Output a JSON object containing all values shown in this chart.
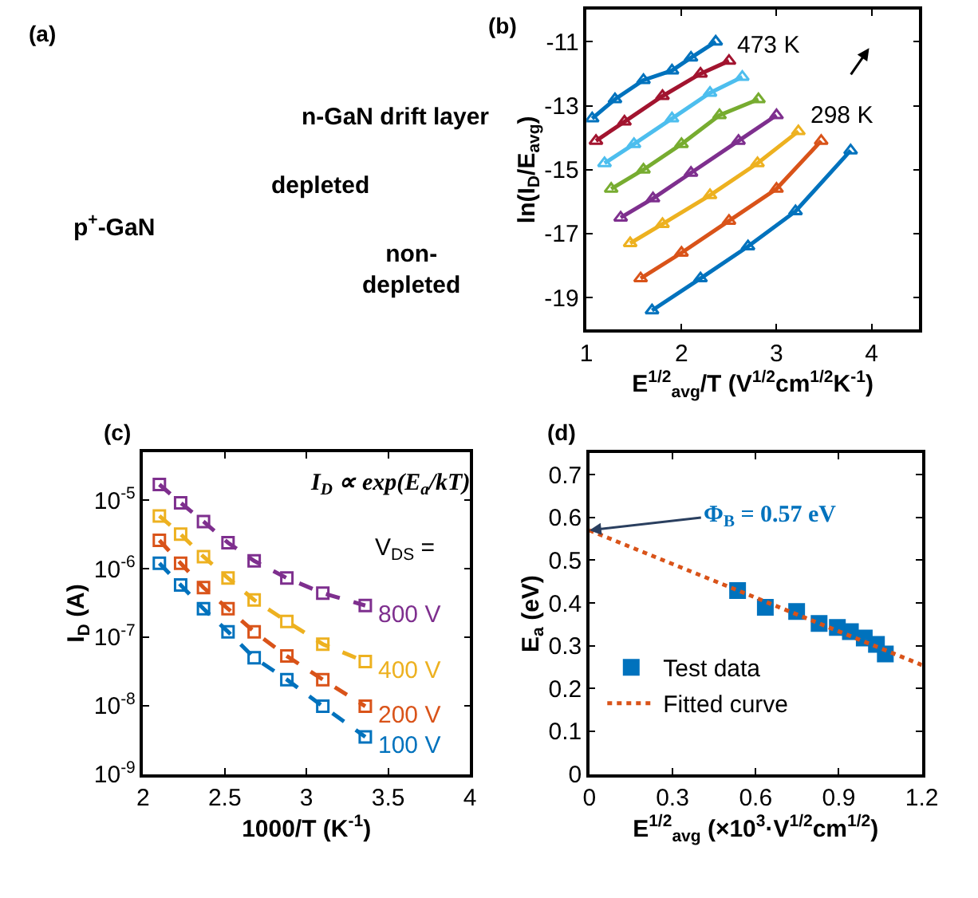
{
  "chart_data": [
    {
      "type": "other",
      "title": "(a)",
      "annotations": [
        "n-GaN drift layer",
        "depleted",
        "p$^{+}$-GaN",
        "non-\ndepleted"
      ]
    },
    {
      "type": "line",
      "title": "(b)",
      "xlabel": "E$^{1/2}$$_{avg}$/T (V$^{1/2}$cm$^{1/2}$K$^{-1}$)",
      "ylabel": "ln(I$_{D}$/E$_{avg}$)",
      "xlim": [
        1,
        4.5
      ],
      "ylim": [
        -20,
        -10
      ],
      "xticks": [
        1,
        2,
        3,
        4
      ],
      "yticks": [
        -19,
        -17,
        -15,
        -13,
        -11
      ],
      "marker": "triangle",
      "line_style": "solid",
      "legend": false,
      "annotations": [
        "473 K",
        "298 K"
      ],
      "series": [
        {
          "color": "#0072bd",
          "x": [
            1.06,
            1.3,
            1.6,
            1.9,
            2.1,
            2.36
          ],
          "values": [
            -13.4,
            -12.8,
            -12.2,
            -11.9,
            -11.5,
            -11.0
          ]
        },
        {
          "color": "#a2142f",
          "x": [
            1.1,
            1.4,
            1.8,
            2.2,
            2.5
          ],
          "values": [
            -14.1,
            -13.5,
            -12.7,
            -12.0,
            -11.6
          ]
        },
        {
          "color": "#4dbeee",
          "x": [
            1.19,
            1.5,
            1.9,
            2.3,
            2.64
          ],
          "values": [
            -14.8,
            -14.2,
            -13.4,
            -12.6,
            -12.1
          ]
        },
        {
          "color": "#77ac30",
          "x": [
            1.26,
            1.6,
            2.0,
            2.4,
            2.81
          ],
          "values": [
            -15.6,
            -15.0,
            -14.2,
            -13.3,
            -12.8
          ]
        },
        {
          "color": "#7e2f8e",
          "x": [
            1.36,
            1.7,
            2.1,
            2.6,
            3.0
          ],
          "values": [
            -16.5,
            -15.9,
            -15.1,
            -14.1,
            -13.3
          ]
        },
        {
          "color": "#edb120",
          "x": [
            1.46,
            1.8,
            2.3,
            2.8,
            3.23
          ],
          "values": [
            -17.3,
            -16.7,
            -15.8,
            -14.8,
            -13.8
          ]
        },
        {
          "color": "#d95319",
          "x": [
            1.57,
            2.0,
            2.5,
            3.0,
            3.47
          ],
          "values": [
            -18.4,
            -17.6,
            -16.6,
            -15.6,
            -14.1
          ]
        },
        {
          "color": "#0072bd",
          "x": [
            1.69,
            2.2,
            2.7,
            3.2,
            3.78
          ],
          "values": [
            -19.4,
            -18.4,
            -17.4,
            -16.3,
            -14.4
          ]
        }
      ]
    },
    {
      "type": "line",
      "title": "(c)",
      "xlabel": "1000/T (K$^{-1}$)",
      "ylabel": "I$_{D}$ (A)",
      "xlim": [
        2,
        4
      ],
      "ylim": [
        1e-09,
        5e-05
      ],
      "log": "y",
      "xticks": [
        2,
        2.5,
        3,
        3.5,
        4
      ],
      "yticks": [
        {
          "value": 1e-09,
          "label": "10$^{-9}$"
        },
        {
          "value": 1e-08,
          "label": "10$^{-8}$"
        },
        {
          "value": 1e-07,
          "label": "10$^{-7}$"
        },
        {
          "value": 1e-06,
          "label": "10$^{-6}$"
        },
        {
          "value": 1e-05,
          "label": "10$^{-5}$"
        }
      ],
      "marker": "square",
      "line_style": "dashed",
      "legend": false,
      "annotations": [
        "I$_{D}$ ∝ exp(E$_{a}$/kT)",
        "V$_{DS}$ ="
      ],
      "x": [
        2.1,
        2.23,
        2.37,
        2.52,
        2.68,
        2.88,
        3.1,
        3.36
      ],
      "series": [
        {
          "name": "800 V",
          "color": "#7e2f8e",
          "values": [
            1.7e-05,
            9.2e-06,
            4.9e-06,
            2.4e-06,
            1.3e-06,
            7.3e-07,
            4.4e-07,
            2.9e-07
          ]
        },
        {
          "name": "400 V",
          "color": "#edb120",
          "values": [
            5.9e-06,
            3.2e-06,
            1.5e-06,
            7.3e-07,
            3.5e-07,
            1.7e-07,
            7.9e-08,
            4.4e-08
          ]
        },
        {
          "name": "200 V",
          "color": "#d95319",
          "values": [
            2.6e-06,
            1.2e-06,
            5.3e-07,
            2.6e-07,
            1.2e-07,
            5.3e-08,
            2.4e-08,
            9.8e-09
          ]
        },
        {
          "name": "100 V",
          "color": "#0072bd",
          "values": [
            1.2e-06,
            5.8e-07,
            2.6e-07,
            1.2e-07,
            5e-08,
            2.4e-08,
            9.8e-09,
            3.5e-09
          ]
        }
      ]
    },
    {
      "type": "scatter",
      "title": "(d)",
      "xlabel": "E$^{1/2}$$_{avg}$ (×10$^{3}$·V$^{1/2}$cm$^{1/2}$)",
      "ylabel": "E$_{a}$ (eV)",
      "xlim": [
        0,
        1.2
      ],
      "ylim": [
        0,
        0.75
      ],
      "xticks": [
        0,
        0.3,
        0.6,
        0.9,
        1.2
      ],
      "yticks": [
        0,
        0.1,
        0.2,
        0.3,
        0.4,
        0.5,
        0.6,
        0.7
      ],
      "legend": "bottom left",
      "annotations": [
        {
          "text": "Φ$_{B}$ = 0.57 eV",
          "x": 0,
          "y": 0.57
        }
      ],
      "series": [
        {
          "name": "Test data",
          "type": "scatter",
          "marker": "square",
          "color": "#0072bd",
          "x": [
            0.535,
            0.635,
            0.748,
            0.829,
            0.895,
            0.942,
            0.992,
            1.036,
            1.068
          ],
          "values": [
            0.429,
            0.39,
            0.38,
            0.352,
            0.343,
            0.333,
            0.318,
            0.303,
            0.281
          ]
        },
        {
          "name": "Fitted curve",
          "type": "line",
          "marker": "none",
          "line_style": "dotted",
          "color": "#d95319",
          "x": [
            0,
            1.2
          ],
          "values": [
            0.57,
            0.255
          ]
        }
      ]
    }
  ]
}
